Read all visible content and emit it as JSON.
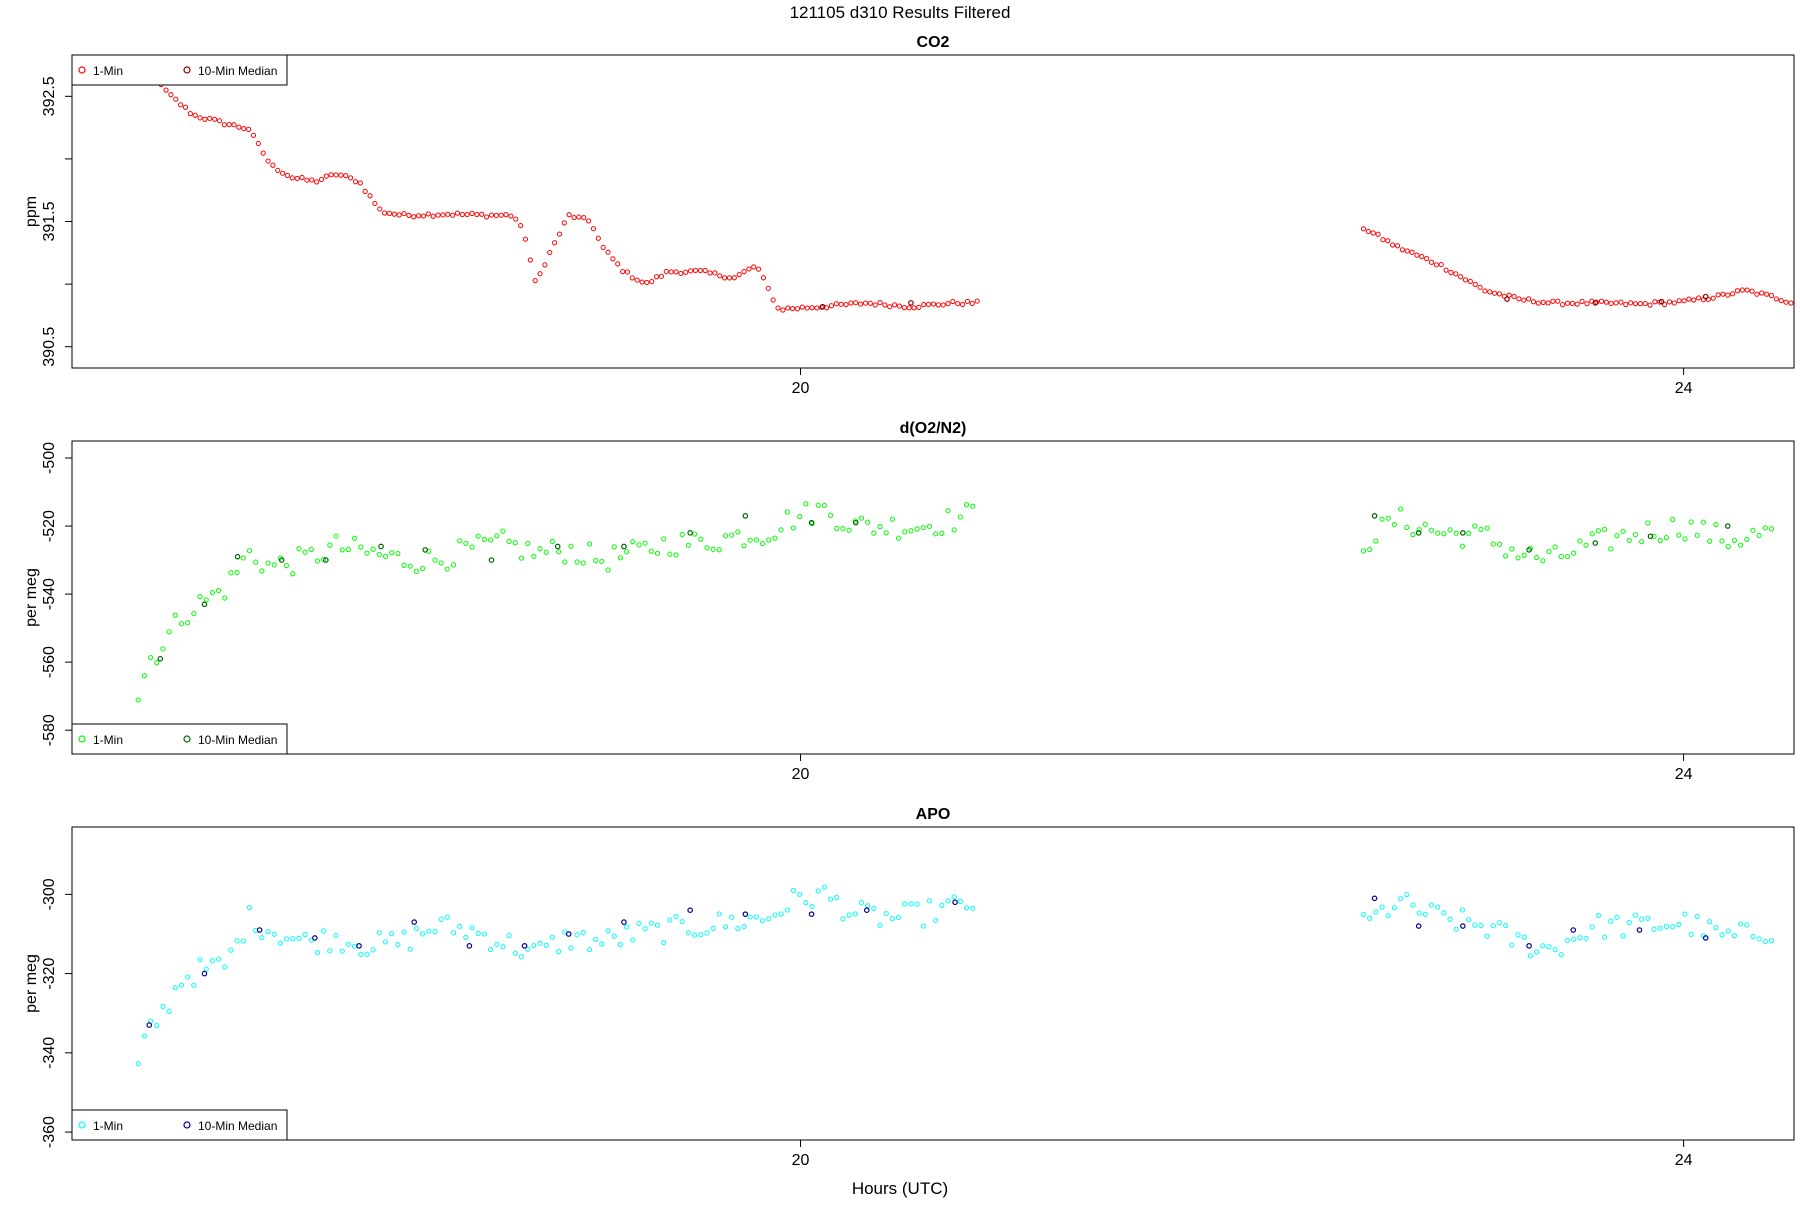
{
  "figure": {
    "title": "121105   d310   Results Filtered",
    "xlabel": "Hours (UTC)",
    "xlim": [
      16.7,
      24.5
    ],
    "xticks": [
      20,
      24
    ],
    "xtick_labels": [
      "20",
      "24"
    ]
  },
  "chart_data": [
    {
      "type": "scatter",
      "title": "CO2",
      "ylabel": "ppm",
      "ylim": [
        390.33,
        392.83
      ],
      "yticks": [
        390.5,
        391.0,
        391.5,
        392.0,
        392.5
      ],
      "ytick_labels": [
        "390.5",
        "",
        "391.5",
        "",
        "392.5"
      ],
      "legend_position": "top-left",
      "series": [
        {
          "name": "1-Min",
          "color": "#ff0000",
          "x": [],
          "y": []
        },
        {
          "name": "10-Min Median",
          "color": "#8b0000",
          "x": [],
          "y": []
        }
      ],
      "segments": [
        [
          [
            16.95,
            392.78
          ],
          [
            17.05,
            392.68
          ],
          [
            17.15,
            392.5
          ],
          [
            17.25,
            392.35
          ],
          [
            17.4,
            392.28
          ],
          [
            17.5,
            392.24
          ],
          [
            17.6,
            391.95
          ],
          [
            17.7,
            391.85
          ],
          [
            17.8,
            391.82
          ],
          [
            17.9,
            391.88
          ],
          [
            18.0,
            391.82
          ],
          [
            18.1,
            391.58
          ],
          [
            18.2,
            391.55
          ],
          [
            18.4,
            391.56
          ],
          [
            18.6,
            391.55
          ],
          [
            18.7,
            391.55
          ],
          [
            18.75,
            391.4
          ],
          [
            18.8,
            391.0
          ],
          [
            18.85,
            391.2
          ],
          [
            18.95,
            391.55
          ],
          [
            19.05,
            391.5
          ],
          [
            19.1,
            391.3
          ],
          [
            19.2,
            391.1
          ],
          [
            19.3,
            391.0
          ],
          [
            19.4,
            391.1
          ],
          [
            19.55,
            391.1
          ],
          [
            19.7,
            391.05
          ],
          [
            19.8,
            391.15
          ],
          [
            19.9,
            390.8
          ],
          [
            20.1,
            390.82
          ],
          [
            20.3,
            390.85
          ],
          [
            20.5,
            390.82
          ],
          [
            20.7,
            390.85
          ],
          [
            20.8,
            390.85
          ]
        ],
        [
          [
            22.55,
            391.45
          ],
          [
            22.7,
            391.3
          ],
          [
            22.9,
            391.15
          ],
          [
            23.1,
            390.95
          ],
          [
            23.25,
            390.88
          ],
          [
            23.4,
            390.85
          ],
          [
            23.6,
            390.85
          ],
          [
            23.8,
            390.84
          ],
          [
            24.0,
            390.86
          ],
          [
            24.15,
            390.9
          ],
          [
            24.28,
            390.95
          ],
          [
            24.4,
            390.9
          ],
          [
            24.5,
            390.85
          ]
        ]
      ],
      "median_x": [
        20.1,
        20.5,
        23.2,
        23.6,
        23.9,
        24.1
      ],
      "median_y": [
        390.82,
        390.85,
        390.88,
        390.85,
        390.86,
        390.9
      ]
    },
    {
      "type": "scatter",
      "title": "d(O2/N2)",
      "ylabel": "per meg",
      "ylim": [
        -587,
        -495
      ],
      "yticks": [
        -580,
        -560,
        -540,
        -520,
        -500
      ],
      "ytick_labels": [
        "-580",
        "-560",
        "-540",
        "-520",
        "-500"
      ],
      "legend_position": "bottom-left",
      "series": [
        {
          "name": "1-Min",
          "color": "#00ff00",
          "x": [],
          "y": []
        },
        {
          "name": "10-Min Median",
          "color": "#006400",
          "x": [],
          "y": []
        }
      ],
      "segments": [
        [
          [
            17.0,
            -570
          ],
          [
            17.05,
            -559
          ],
          [
            17.1,
            -556
          ],
          [
            17.2,
            -546
          ],
          [
            17.3,
            -542
          ],
          [
            17.4,
            -538
          ],
          [
            17.5,
            -528
          ],
          [
            17.6,
            -532
          ],
          [
            17.75,
            -530
          ],
          [
            17.9,
            -526
          ],
          [
            18.05,
            -528
          ],
          [
            18.2,
            -530
          ],
          [
            18.35,
            -530
          ],
          [
            18.5,
            -527
          ],
          [
            18.65,
            -525
          ],
          [
            18.8,
            -528
          ],
          [
            18.95,
            -527
          ],
          [
            19.1,
            -530
          ],
          [
            19.25,
            -528
          ],
          [
            19.4,
            -525
          ],
          [
            19.55,
            -525
          ],
          [
            19.7,
            -523
          ],
          [
            19.85,
            -522
          ],
          [
            19.95,
            -518
          ],
          [
            20.1,
            -515
          ],
          [
            20.25,
            -520
          ],
          [
            20.4,
            -520
          ],
          [
            20.55,
            -520
          ],
          [
            20.7,
            -518
          ],
          [
            20.8,
            -516
          ]
        ],
        [
          [
            22.55,
            -525
          ],
          [
            22.7,
            -518
          ],
          [
            22.9,
            -522
          ],
          [
            23.1,
            -523
          ],
          [
            23.25,
            -528
          ],
          [
            23.4,
            -530
          ],
          [
            23.6,
            -525
          ],
          [
            23.8,
            -522
          ],
          [
            24.0,
            -520
          ],
          [
            24.2,
            -524
          ],
          [
            24.4,
            -522
          ]
        ]
      ],
      "median_x": [
        17.1,
        17.3,
        17.45,
        17.65,
        17.85,
        18.1,
        18.3,
        18.6,
        18.9,
        19.2,
        19.5,
        19.75,
        20.05,
        20.25,
        22.6,
        22.8,
        23.0,
        23.3,
        23.6,
        23.85,
        24.2
      ],
      "median_y": [
        -559,
        -543,
        -529,
        -530,
        -530,
        -526,
        -527,
        -530,
        -526,
        -526,
        -522,
        -517,
        -519,
        -519,
        -517,
        -522,
        -522,
        -527,
        -525,
        -523,
        -520
      ]
    },
    {
      "type": "scatter",
      "title": "APO",
      "ylabel": "per meg",
      "ylim": [
        -362,
        -283
      ],
      "yticks": [
        -360,
        -340,
        -320,
        -300
      ],
      "ytick_labels": [
        "-360",
        "-340",
        "-320",
        "-300"
      ],
      "legend_position": "bottom-left",
      "series": [
        {
          "name": "1-Min",
          "color": "#00ffff",
          "x": [],
          "y": []
        },
        {
          "name": "10-Min Median",
          "color": "#00008b",
          "x": [],
          "y": []
        }
      ],
      "segments": [
        [
          [
            17.0,
            -344
          ],
          [
            17.05,
            -334
          ],
          [
            17.1,
            -331
          ],
          [
            17.2,
            -321
          ],
          [
            17.3,
            -319
          ],
          [
            17.4,
            -318
          ],
          [
            17.5,
            -306
          ],
          [
            17.6,
            -309
          ],
          [
            17.75,
            -312
          ],
          [
            17.9,
            -311
          ],
          [
            18.05,
            -313
          ],
          [
            18.2,
            -312
          ],
          [
            18.35,
            -308
          ],
          [
            18.5,
            -309
          ],
          [
            18.65,
            -312
          ],
          [
            18.8,
            -315
          ],
          [
            18.95,
            -311
          ],
          [
            19.1,
            -312
          ],
          [
            19.25,
            -310
          ],
          [
            19.4,
            -309
          ],
          [
            19.55,
            -308
          ],
          [
            19.7,
            -307
          ],
          [
            19.85,
            -306
          ],
          [
            19.95,
            -302
          ],
          [
            20.1,
            -300
          ],
          [
            20.25,
            -305
          ],
          [
            20.4,
            -306
          ],
          [
            20.55,
            -305
          ],
          [
            20.7,
            -303
          ],
          [
            20.8,
            -302
          ]
        ],
        [
          [
            22.55,
            -308
          ],
          [
            22.7,
            -302
          ],
          [
            22.9,
            -306
          ],
          [
            23.1,
            -308
          ],
          [
            23.25,
            -312
          ],
          [
            23.4,
            -314
          ],
          [
            23.6,
            -308
          ],
          [
            23.8,
            -308
          ],
          [
            24.0,
            -307
          ],
          [
            24.2,
            -311
          ],
          [
            24.4,
            -309
          ]
        ]
      ],
      "median_x": [
        17.05,
        17.3,
        17.55,
        17.8,
        18.0,
        18.25,
        18.5,
        18.75,
        18.95,
        19.2,
        19.5,
        19.75,
        20.05,
        20.3,
        20.7,
        22.6,
        22.8,
        23.0,
        23.3,
        23.5,
        23.8,
        24.1
      ],
      "median_y": [
        -333,
        -320,
        -309,
        -311,
        -313,
        -307,
        -313,
        -313,
        -310,
        -307,
        -304,
        -305,
        -305,
        -304,
        -302,
        -301,
        -308,
        -308,
        -313,
        -309,
        -309,
        -311
      ]
    }
  ]
}
